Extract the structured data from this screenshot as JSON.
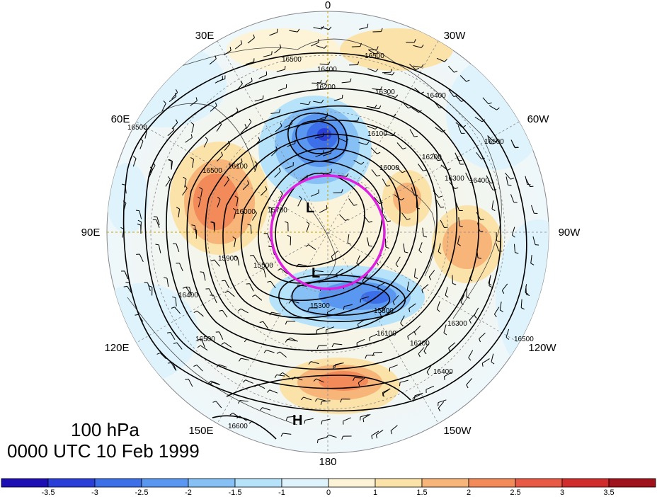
{
  "map": {
    "level": "100 hPa",
    "valid_time": "0000 UTC 10 Feb 1999",
    "longitude_labels": [
      "0",
      "30W",
      "60W",
      "90W",
      "120W",
      "150W",
      "180",
      "150E",
      "120E",
      "90E",
      "60E",
      "30E"
    ],
    "contour_labels": [
      "16500",
      "16500",
      "16400",
      "16300",
      "16200",
      "16400",
      "16500",
      "16100",
      "16000",
      "16200",
      "16300",
      "16400",
      "16500",
      "16500",
      "16400",
      "16300",
      "16200",
      "16100",
      "15800",
      "15300",
      "15500",
      "15700",
      "15900",
      "16000",
      "16100",
      "16500",
      "16400",
      "16500",
      "16600"
    ],
    "system_labels": [
      "L",
      "L",
      "H"
    ],
    "colorbar": {
      "tick_labels": [
        "-3.5",
        "-3",
        "-2.5",
        "-2",
        "-1.5",
        "-1",
        "0",
        "1",
        "1.5",
        "2",
        "2.5",
        "3",
        "3.5"
      ],
      "colors": [
        "#1e0fb4",
        "#2a3fd8",
        "#3d6fe8",
        "#5a97f0",
        "#86c0f5",
        "#b6e3fa",
        "#def3fb",
        "#fdf3d6",
        "#fbe2a8",
        "#f7b57a",
        "#f28a5a",
        "#e85a45",
        "#d02c2c",
        "#a0121c"
      ]
    },
    "highlight_circle_color": "#e020e0",
    "contour_color": "#000000"
  }
}
